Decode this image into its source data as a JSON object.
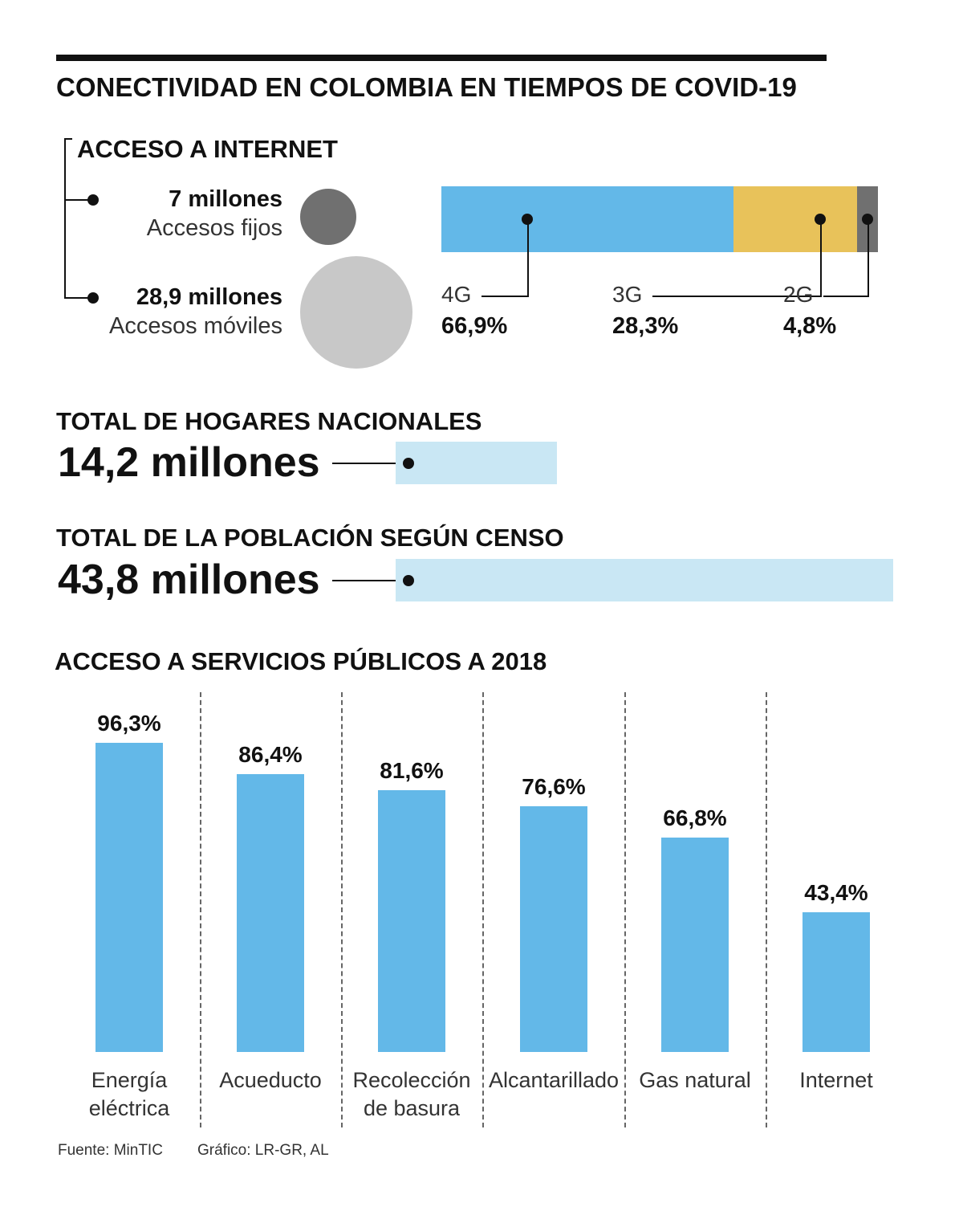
{
  "title": "CONECTIVIDAD EN COLOMBIA EN TIEMPOS DE COVID-19",
  "internet": {
    "heading": "ACCESO A INTERNET",
    "fixed": {
      "value": "7 millones",
      "label": "Accesos fijos",
      "color": "#707070"
    },
    "mobile": {
      "value": "28,9 millones",
      "label": "Accesos móviles",
      "color": "#c8c8c8"
    }
  },
  "mobile_tech": [
    {
      "label": "4G",
      "value": "66,9%",
      "share": 66.9,
      "color": "#63b8e8"
    },
    {
      "label": "3G",
      "value": "28,3%",
      "share": 28.3,
      "color": "#e8c25a"
    },
    {
      "label": "2G",
      "value": "4,8%",
      "share": 4.8,
      "color": "#707070"
    }
  ],
  "households": {
    "heading": "TOTAL DE HOGARES NACIONALES",
    "value": "14,2 millones",
    "amount": 14.2,
    "color": "#c9e7f4"
  },
  "population": {
    "heading": "TOTAL DE LA POBLACIÓN SEGÚN CENSO",
    "value": "43,8 millones",
    "amount": 43.8,
    "color": "#c9e7f4"
  },
  "services": {
    "heading": "ACCESO A SERVICIOS PÚBLICOS A 2018"
  },
  "chart_data": {
    "type": "bar",
    "title": "ACCESO A SERVICIOS PÚBLICOS A 2018",
    "categories": [
      "Energía eléctrica",
      "Acueducto",
      "Recolección de basura",
      "Alcantarillado",
      "Gas natural",
      "Internet"
    ],
    "category_lines": [
      [
        "Energía",
        "eléctrica"
      ],
      [
        "Acueducto"
      ],
      [
        "Recolección",
        "de basura"
      ],
      [
        "Alcantarillado"
      ],
      [
        "Gas natural"
      ],
      [
        "Internet"
      ]
    ],
    "values": [
      96.3,
      86.4,
      81.6,
      76.6,
      66.8,
      43.4
    ],
    "value_labels": [
      "96,3%",
      "86,4%",
      "81,6%",
      "76,6%",
      "66,8%",
      "43,4%"
    ],
    "ylim": [
      0,
      100
    ],
    "xlabel": "",
    "ylabel": "",
    "bar_color": "#63b8e8"
  },
  "footer": {
    "source": "Fuente: MinTIC",
    "credit": "Gráfico: LR-GR, AL"
  }
}
